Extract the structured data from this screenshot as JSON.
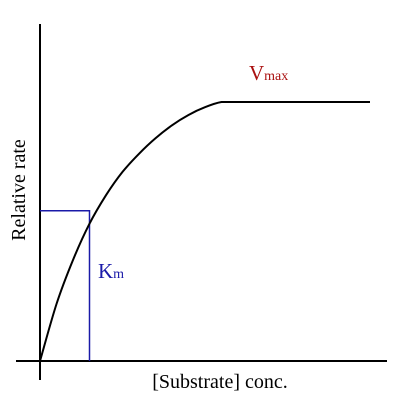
{
  "chart_data": {
    "type": "line",
    "title": "",
    "xlabel": "[Substrate] conc.",
    "ylabel": "Relative rate",
    "xlim": [
      0,
      1
    ],
    "ylim": [
      0,
      1
    ],
    "grid": false,
    "ticks": false,
    "series": [
      {
        "x": [
          0,
          0.05,
          0.1,
          0.15,
          0.2,
          0.25,
          0.3,
          0.35,
          0.4,
          0.45,
          0.5,
          0.55,
          0.6,
          1.0
        ],
        "y": [
          0,
          0.22,
          0.39,
          0.53,
          0.64,
          0.73,
          0.8,
          0.86,
          0.91,
          0.95,
          0.98,
          1.0,
          1.0,
          1.0
        ]
      }
    ],
    "annotations": {
      "vmax": {
        "main": "V",
        "sub": "max",
        "color": "#aa1111"
      },
      "km": {
        "main": "K",
        "sub": "m",
        "color": "#1a1aa8",
        "x": 0.15,
        "y": 0.58
      }
    },
    "colors": {
      "axis": "#000000",
      "curve": "#000000",
      "km_guide": "#1a1aa8"
    }
  }
}
